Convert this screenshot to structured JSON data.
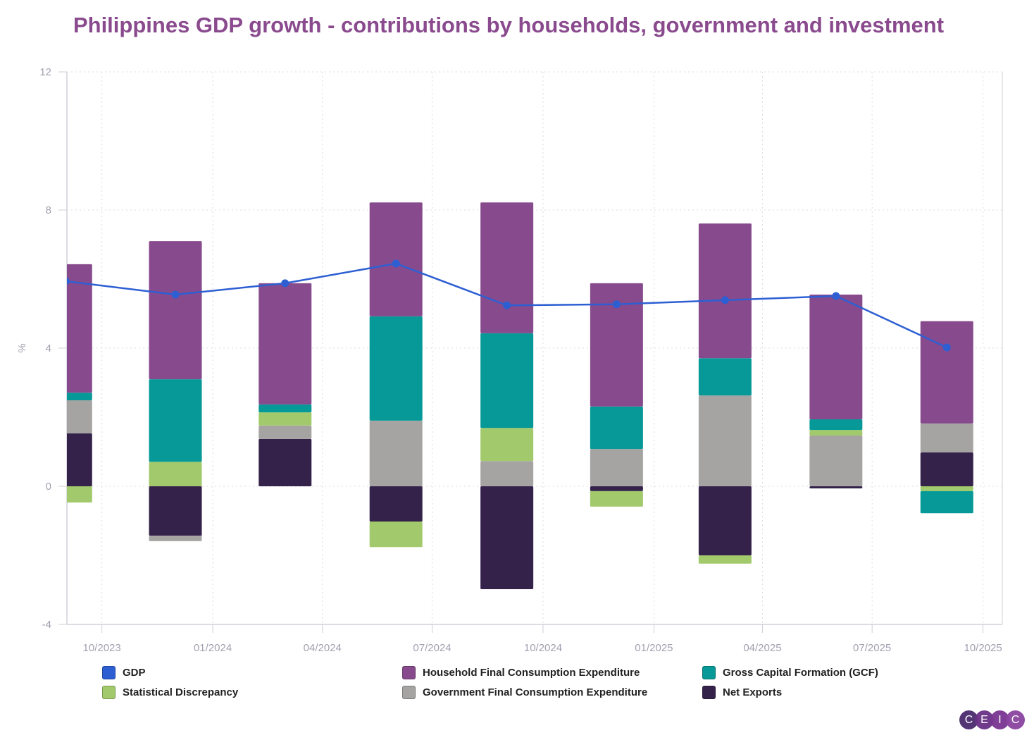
{
  "chart_data": {
    "type": "bar",
    "title": "Philippines GDP growth - contributions by households, government and investment",
    "ylabel": "%",
    "xlabel": "",
    "ylim": [
      -4,
      12
    ],
    "yticks": [
      -4,
      0,
      4,
      8,
      12
    ],
    "xlim": [
      "2023-09-02",
      "2025-10-17"
    ],
    "xticks": [
      {
        "date": "2023-10-01",
        "label": "10/2023"
      },
      {
        "date": "2024-01-01",
        "label": "01/2024"
      },
      {
        "date": "2024-04-01",
        "label": "04/2024"
      },
      {
        "date": "2024-07-01",
        "label": "07/2024"
      },
      {
        "date": "2024-10-01",
        "label": "10/2024"
      },
      {
        "date": "2025-01-01",
        "label": "01/2025"
      },
      {
        "date": "2025-04-01",
        "label": "04/2025"
      },
      {
        "date": "2025-07-01",
        "label": "07/2025"
      },
      {
        "date": "2025-10-01",
        "label": "10/2025"
      }
    ],
    "grid": true,
    "stacked": true,
    "legend_position": "bottom",
    "x": [
      "2023-09-01",
      "2023-12-01",
      "2024-03-01",
      "2024-06-01",
      "2024-09-01",
      "2024-12-01",
      "2025-03-01",
      "2025-06-01",
      "2025-09-01"
    ],
    "series": [
      {
        "name": "Net Exports",
        "kind": "bar",
        "color": "#34224b",
        "values": [
          1.53,
          -1.43,
          1.37,
          -1.02,
          -2.98,
          -0.14,
          -2.0,
          -0.06,
          0.98
        ]
      },
      {
        "name": "Government Final Consumption Expenditure",
        "kind": "bar",
        "color": "#a5a4a2",
        "values": [
          0.96,
          -0.16,
          0.39,
          1.9,
          0.73,
          1.08,
          2.63,
          1.47,
          0.84
        ]
      },
      {
        "name": "Statistical Discrepancy",
        "kind": "bar",
        "color": "#a2c96b",
        "values": [
          -0.47,
          0.71,
          0.38,
          -0.74,
          0.96,
          -0.45,
          -0.24,
          0.16,
          -0.14
        ]
      },
      {
        "name": "Gross Capital Formation (GCF)",
        "kind": "bar",
        "color": "#069997",
        "values": [
          0.22,
          2.39,
          0.23,
          3.02,
          2.74,
          1.23,
          1.08,
          0.31,
          -0.64
        ]
      },
      {
        "name": "Household Final Consumption Expenditure",
        "kind": "bar",
        "color": "#874b8d",
        "values": [
          3.72,
          4.0,
          3.51,
          3.3,
          3.79,
          3.57,
          3.9,
          3.61,
          2.96
        ]
      },
      {
        "name": "GDP",
        "kind": "line",
        "color": "#2d5fd3",
        "values": [
          5.94,
          5.55,
          5.88,
          6.45,
          5.24,
          5.27,
          5.39,
          5.51,
          4.02
        ]
      }
    ]
  },
  "legend": [
    {
      "label": "GDP",
      "color": "#2d5fd3"
    },
    {
      "label": "Household Final Consumption Expenditure",
      "color": "#874b8d"
    },
    {
      "label": "Gross Capital Formation (GCF)",
      "color": "#069997"
    },
    {
      "label": "Statistical Discrepancy",
      "color": "#a2c96b"
    },
    {
      "label": "Government Final Consumption Expenditure",
      "color": "#a5a4a2"
    },
    {
      "label": "Net Exports",
      "color": "#34224b"
    }
  ],
  "logo": {
    "letters": [
      "C",
      "E",
      "I",
      "C"
    ]
  }
}
